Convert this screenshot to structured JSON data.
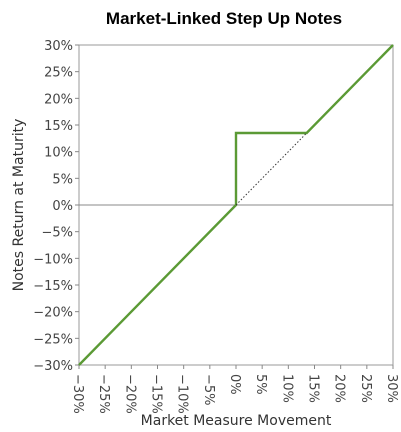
{
  "chart_data": {
    "type": "line",
    "title": "Market-Linked Step Up Notes",
    "xlabel": "Market Measure Movement",
    "ylabel": "Notes Return at Maturity",
    "xlim": [
      -30,
      30
    ],
    "ylim": [
      -30,
      30
    ],
    "x_ticks": [
      "−30%",
      "−25%",
      "−20%",
      "−15%",
      "−10%",
      "−5%",
      "0%",
      "5%",
      "10%",
      "15%",
      "20%",
      "25%",
      "30%"
    ],
    "y_ticks": [
      "30%",
      "25%",
      "20%",
      "15%",
      "10%",
      "5%",
      "0%",
      "−5%",
      "−10%",
      "−15%",
      "−20%",
      "−25%",
      "−30%"
    ],
    "grid": false,
    "series": [
      {
        "style": "solid",
        "color": "#5b9a35",
        "x": [
          -30,
          0,
          0,
          13.5,
          30
        ],
        "y": [
          -30,
          0,
          13.5,
          13.5,
          30
        ]
      },
      {
        "style": "dotted",
        "color": "#333333",
        "x": [
          0,
          13.5
        ],
        "y": [
          0,
          13.5
        ]
      }
    ]
  }
}
